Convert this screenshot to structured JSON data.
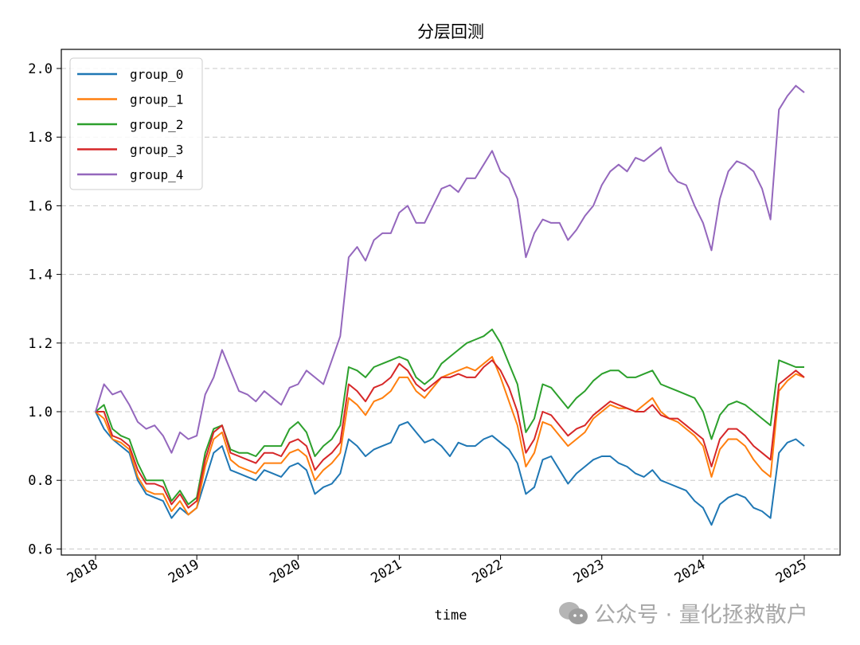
{
  "chart_data": {
    "type": "line",
    "title": "分层回测",
    "xlabel": "time",
    "ylabel": "",
    "ylim": [
      0.58,
      2.05
    ],
    "yticks": [
      "0.6",
      "0.8",
      "1.0",
      "1.2",
      "1.4",
      "1.6",
      "1.8",
      "2.0"
    ],
    "xticks": [
      "2018",
      "2019",
      "2020",
      "2021",
      "2022",
      "2023",
      "2024",
      "2025"
    ],
    "x_start": "2018-01",
    "x_frequency": "monthly",
    "grid": "horizontal dashed",
    "legend_position": "top-left",
    "series": [
      {
        "name": "group_0",
        "color": "#1f77b4",
        "values": [
          1.0,
          0.95,
          0.92,
          0.9,
          0.88,
          0.8,
          0.76,
          0.75,
          0.74,
          0.69,
          0.72,
          0.7,
          0.72,
          0.8,
          0.88,
          0.9,
          0.83,
          0.82,
          0.81,
          0.8,
          0.83,
          0.82,
          0.81,
          0.84,
          0.85,
          0.83,
          0.76,
          0.78,
          0.79,
          0.82,
          0.92,
          0.9,
          0.87,
          0.89,
          0.9,
          0.91,
          0.96,
          0.97,
          0.94,
          0.91,
          0.92,
          0.9,
          0.87,
          0.91,
          0.9,
          0.9,
          0.92,
          0.93,
          0.91,
          0.89,
          0.85,
          0.76,
          0.78,
          0.86,
          0.87,
          0.83,
          0.79,
          0.82,
          0.84,
          0.86,
          0.87,
          0.87,
          0.85,
          0.84,
          0.82,
          0.81,
          0.83,
          0.8,
          0.79,
          0.78,
          0.77,
          0.74,
          0.72,
          0.67,
          0.73,
          0.75,
          0.76,
          0.75,
          0.72,
          0.71,
          0.69,
          0.88,
          0.91,
          0.92,
          0.9
        ]
      },
      {
        "name": "group_1",
        "color": "#ff7f0e",
        "values": [
          1.0,
          0.98,
          0.92,
          0.91,
          0.89,
          0.81,
          0.77,
          0.76,
          0.76,
          0.71,
          0.74,
          0.7,
          0.72,
          0.84,
          0.92,
          0.94,
          0.86,
          0.84,
          0.83,
          0.82,
          0.85,
          0.85,
          0.85,
          0.88,
          0.89,
          0.87,
          0.8,
          0.83,
          0.85,
          0.88,
          1.04,
          1.02,
          0.99,
          1.03,
          1.04,
          1.06,
          1.1,
          1.1,
          1.06,
          1.04,
          1.07,
          1.1,
          1.11,
          1.12,
          1.13,
          1.12,
          1.14,
          1.16,
          1.1,
          1.03,
          0.96,
          0.84,
          0.88,
          0.97,
          0.96,
          0.93,
          0.9,
          0.92,
          0.94,
          0.98,
          1.0,
          1.02,
          1.01,
          1.01,
          1.0,
          1.02,
          1.04,
          1.0,
          0.98,
          0.97,
          0.95,
          0.93,
          0.9,
          0.81,
          0.89,
          0.92,
          0.92,
          0.9,
          0.86,
          0.83,
          0.81,
          1.06,
          1.09,
          1.11,
          1.1
        ]
      },
      {
        "name": "group_2",
        "color": "#2ca02c",
        "values": [
          1.0,
          1.02,
          0.95,
          0.93,
          0.92,
          0.85,
          0.8,
          0.8,
          0.8,
          0.74,
          0.77,
          0.73,
          0.75,
          0.88,
          0.95,
          0.96,
          0.89,
          0.88,
          0.88,
          0.87,
          0.9,
          0.9,
          0.9,
          0.95,
          0.97,
          0.94,
          0.87,
          0.9,
          0.92,
          0.96,
          1.13,
          1.12,
          1.1,
          1.13,
          1.14,
          1.15,
          1.16,
          1.15,
          1.1,
          1.08,
          1.1,
          1.14,
          1.16,
          1.18,
          1.2,
          1.21,
          1.22,
          1.24,
          1.2,
          1.14,
          1.08,
          0.94,
          0.98,
          1.08,
          1.07,
          1.04,
          1.01,
          1.04,
          1.06,
          1.09,
          1.11,
          1.12,
          1.12,
          1.1,
          1.1,
          1.11,
          1.12,
          1.08,
          1.07,
          1.06,
          1.05,
          1.04,
          1.0,
          0.92,
          0.99,
          1.02,
          1.03,
          1.02,
          1.0,
          0.98,
          0.96,
          1.15,
          1.14,
          1.13,
          1.13
        ]
      },
      {
        "name": "group_3",
        "color": "#d62728",
        "values": [
          1.0,
          1.0,
          0.93,
          0.92,
          0.9,
          0.83,
          0.79,
          0.79,
          0.78,
          0.73,
          0.76,
          0.72,
          0.74,
          0.86,
          0.94,
          0.96,
          0.88,
          0.87,
          0.86,
          0.85,
          0.88,
          0.88,
          0.87,
          0.91,
          0.92,
          0.9,
          0.83,
          0.86,
          0.88,
          0.91,
          1.08,
          1.06,
          1.03,
          1.07,
          1.08,
          1.1,
          1.14,
          1.12,
          1.08,
          1.06,
          1.08,
          1.1,
          1.1,
          1.11,
          1.1,
          1.1,
          1.13,
          1.15,
          1.12,
          1.07,
          1.0,
          0.88,
          0.92,
          1.0,
          0.99,
          0.96,
          0.93,
          0.95,
          0.96,
          0.99,
          1.01,
          1.03,
          1.02,
          1.01,
          1.0,
          1.0,
          1.02,
          0.99,
          0.98,
          0.98,
          0.96,
          0.94,
          0.92,
          0.84,
          0.92,
          0.95,
          0.95,
          0.93,
          0.9,
          0.88,
          0.86,
          1.08,
          1.1,
          1.12,
          1.1
        ]
      },
      {
        "name": "group_4",
        "color": "#9467bd",
        "values": [
          1.0,
          1.08,
          1.05,
          1.06,
          1.02,
          0.97,
          0.95,
          0.96,
          0.93,
          0.88,
          0.94,
          0.92,
          0.93,
          1.05,
          1.1,
          1.18,
          1.12,
          1.06,
          1.05,
          1.03,
          1.06,
          1.04,
          1.02,
          1.07,
          1.08,
          1.12,
          1.1,
          1.08,
          1.15,
          1.22,
          1.45,
          1.48,
          1.44,
          1.5,
          1.52,
          1.52,
          1.58,
          1.6,
          1.55,
          1.55,
          1.6,
          1.65,
          1.66,
          1.64,
          1.68,
          1.68,
          1.72,
          1.76,
          1.7,
          1.68,
          1.62,
          1.45,
          1.52,
          1.56,
          1.55,
          1.55,
          1.5,
          1.53,
          1.57,
          1.6,
          1.66,
          1.7,
          1.72,
          1.7,
          1.74,
          1.73,
          1.75,
          1.77,
          1.7,
          1.67,
          1.66,
          1.6,
          1.55,
          1.47,
          1.62,
          1.7,
          1.73,
          1.72,
          1.7,
          1.65,
          1.56,
          1.88,
          1.92,
          1.95,
          1.93
        ]
      }
    ]
  },
  "watermark": {
    "text": "公众号 · 量化拯救散户",
    "icon": "wechat-icon"
  }
}
